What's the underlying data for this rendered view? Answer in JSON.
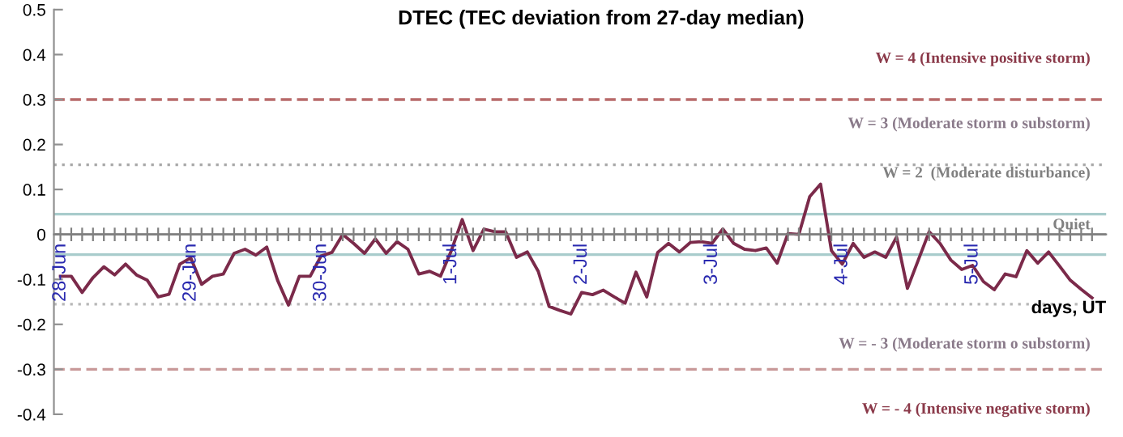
{
  "chart_data": {
    "type": "line",
    "title": "DTEC (TEC deviation from 27-day median)",
    "xlabel": "days, UT",
    "categories": [
      "28-Jun",
      null,
      null,
      null,
      null,
      null,
      null,
      null,
      null,
      null,
      null,
      null,
      "29-Jun",
      null,
      null,
      null,
      null,
      null,
      null,
      null,
      null,
      null,
      null,
      null,
      "30-Jun",
      null,
      null,
      null,
      null,
      null,
      null,
      null,
      null,
      null,
      null,
      null,
      "1-Jul",
      null,
      null,
      null,
      null,
      null,
      null,
      null,
      null,
      null,
      null,
      null,
      "2-Jul",
      null,
      null,
      null,
      null,
      null,
      null,
      null,
      null,
      null,
      null,
      null,
      "3-Jul",
      null,
      null,
      null,
      null,
      null,
      null,
      null,
      null,
      null,
      null,
      null,
      "4-Jul",
      null,
      null,
      null,
      null,
      null,
      null,
      null,
      null,
      null,
      null,
      null,
      "5-Jul",
      null,
      null,
      null,
      null,
      null,
      null,
      null,
      null,
      null,
      null,
      null
    ],
    "series": [
      {
        "color": "#7b2a4a",
        "values": [
          -0.093,
          -0.093,
          -0.129,
          -0.096,
          -0.072,
          -0.09,
          -0.066,
          -0.09,
          -0.102,
          -0.139,
          -0.133,
          -0.066,
          -0.052,
          -0.111,
          -0.093,
          -0.088,
          -0.042,
          -0.033,
          -0.046,
          -0.028,
          -0.102,
          -0.157,
          -0.093,
          -0.093,
          -0.048,
          -0.04,
          0.0,
          -0.02,
          -0.042,
          -0.01,
          -0.042,
          -0.016,
          -0.033,
          -0.088,
          -0.082,
          -0.093,
          -0.036,
          0.033,
          -0.036,
          0.012,
          0.006,
          0.006,
          -0.051,
          -0.039,
          -0.082,
          -0.16,
          -0.169,
          -0.177,
          -0.129,
          -0.134,
          -0.124,
          -0.139,
          -0.153,
          -0.084,
          -0.139,
          -0.04,
          -0.02,
          -0.039,
          -0.018,
          -0.016,
          -0.02,
          0.012,
          -0.02,
          -0.033,
          -0.036,
          -0.03,
          -0.064,
          0.002,
          0.0,
          0.084,
          0.112,
          -0.036,
          -0.066,
          -0.02,
          -0.051,
          -0.039,
          -0.051,
          -0.006,
          -0.12,
          -0.057,
          0.006,
          -0.02,
          -0.057,
          -0.078,
          -0.069,
          -0.105,
          -0.123,
          -0.088,
          -0.094,
          -0.036,
          -0.064,
          -0.039,
          -0.07,
          -0.102,
          -0.122,
          -0.141
        ]
      }
    ],
    "ylim": [
      -0.4,
      0.5
    ],
    "yticks": [
      -0.4,
      -0.3,
      -0.2,
      -0.1,
      0,
      0.1,
      0.2,
      0.3,
      0.4,
      0.5
    ],
    "ref_lines": [
      {
        "axis": "y",
        "value": 0.3,
        "color": "#b86a6a",
        "line_style": "dashed"
      },
      {
        "axis": "y",
        "value": 0.155,
        "color": "#a8a8a8",
        "line_style": "dotted"
      },
      {
        "axis": "y",
        "value": 0.045,
        "color": "#a8cccc",
        "line_style": "solid"
      },
      {
        "axis": "y",
        "value": 0,
        "color": "#808080",
        "line_style": "solid"
      },
      {
        "axis": "y",
        "value": -0.045,
        "color": "#a8cccc",
        "line_style": "solid"
      },
      {
        "axis": "y",
        "value": -0.155,
        "color": "#b8b8b8",
        "line_style": "dotted"
      },
      {
        "axis": "y",
        "value": -0.3,
        "color": "#c89898",
        "line_style": "dashed"
      }
    ],
    "annotations": [
      {
        "text": "W = 4 (Intensive positive storm)",
        "y": 0.3
      },
      {
        "text": "W = 3 (Moderate storm o substorm)",
        "y": 0.155
      },
      {
        "text": "W = 2  (Moderate disturbance)",
        "y": 0.045
      },
      {
        "text": "Quiet",
        "y": 0
      },
      {
        "text": "W = - 3 (Moderate storm o substorm)",
        "y": -0.155
      },
      {
        "text": "W = - 4 (Intensive negative storm)",
        "y": -0.3
      }
    ],
    "grid": false,
    "legend": false,
    "marker": "none",
    "line_style": "solid"
  }
}
